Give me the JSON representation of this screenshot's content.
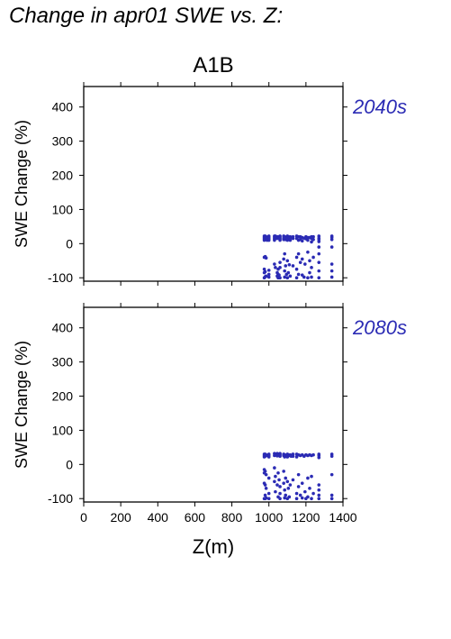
{
  "page": {
    "title": "Change in apr01 SWE vs. Z:",
    "scenario": "A1B"
  },
  "colors": {
    "points": "#2b2bb4",
    "period_label": "#2b2bb4",
    "frame": "#000000"
  },
  "chart_data": [
    {
      "type": "scatter",
      "period_label": "2040s",
      "xlabel": "",
      "ylabel": "SWE Change (%)",
      "xlim": [
        0,
        1400
      ],
      "ylim": [
        -110,
        460
      ],
      "xticks": [],
      "yticks": [
        -100,
        0,
        100,
        200,
        300,
        400
      ],
      "grid": false,
      "x": [
        975,
        975,
        975,
        975,
        975,
        975,
        975,
        975,
        980,
        980,
        980,
        980,
        980,
        980,
        985,
        985,
        985,
        985,
        990,
        990,
        1000,
        1000,
        1000,
        1000,
        1000,
        1000,
        1000,
        1030,
        1030,
        1030,
        1030,
        1030,
        1035,
        1035,
        1035,
        1045,
        1045,
        1045,
        1045,
        1050,
        1050,
        1050,
        1050,
        1055,
        1055,
        1060,
        1060,
        1060,
        1060,
        1060,
        1060,
        1060,
        1080,
        1080,
        1080,
        1080,
        1085,
        1085,
        1085,
        1085,
        1085,
        1090,
        1090,
        1090,
        1095,
        1095,
        1100,
        1100,
        1100,
        1100,
        1100,
        1100,
        1105,
        1105,
        1105,
        1110,
        1110,
        1115,
        1115,
        1115,
        1120,
        1130,
        1130,
        1130,
        1150,
        1150,
        1150,
        1150,
        1150,
        1160,
        1160,
        1160,
        1160,
        1170,
        1170,
        1170,
        1180,
        1180,
        1180,
        1180,
        1190,
        1190,
        1195,
        1200,
        1200,
        1210,
        1210,
        1210,
        1210,
        1220,
        1220,
        1220,
        1230,
        1230,
        1230,
        1230,
        1230,
        1240,
        1240,
        1240,
        1270,
        1270,
        1270,
        1270,
        1270,
        1270,
        1270,
        1270,
        1270,
        1340,
        1340,
        1340,
        1340,
        1340,
        1340,
        1340
      ],
      "y": [
        22,
        18,
        14,
        10,
        -40,
        -75,
        -85,
        -100,
        22,
        16,
        12,
        -38,
        -82,
        -97,
        20,
        14,
        -42,
        -95,
        18,
        10,
        22,
        18,
        14,
        10,
        -78,
        -90,
        -98,
        22,
        18,
        14,
        10,
        -60,
        22,
        15,
        -70,
        20,
        15,
        -85,
        -95,
        20,
        -75,
        -90,
        -100,
        18,
        -92,
        22,
        18,
        14,
        10,
        -55,
        -70,
        -100,
        22,
        16,
        12,
        -45,
        20,
        14,
        -30,
        -80,
        -98,
        18,
        12,
        -65,
        16,
        -90,
        22,
        18,
        14,
        10,
        -50,
        -100,
        20,
        15,
        -85,
        18,
        -62,
        20,
        10,
        -95,
        18,
        20,
        15,
        -65,
        22,
        15,
        -40,
        -75,
        -100,
        20,
        10,
        -30,
        -90,
        20,
        12,
        -55,
        18,
        8,
        -45,
        -92,
        16,
        -98,
        -60,
        20,
        14,
        18,
        10,
        -25,
        -100,
        18,
        -50,
        -85,
        20,
        15,
        5,
        -70,
        -98,
        20,
        12,
        -40,
        22,
        16,
        12,
        6,
        -10,
        -30,
        -55,
        -80,
        -100,
        22,
        18,
        12,
        -10,
        -60,
        -80,
        -98
      ]
    },
    {
      "type": "scatter",
      "period_label": "2080s",
      "xlabel": "Z(m)",
      "ylabel": "SWE Change (%)",
      "xlim": [
        0,
        1400
      ],
      "ylim": [
        -110,
        460
      ],
      "xticks": [
        0,
        200,
        400,
        600,
        800,
        1000,
        1200,
        1400
      ],
      "yticks": [
        -100,
        0,
        100,
        200,
        300,
        400
      ],
      "grid": false,
      "x": [
        975,
        975,
        975,
        975,
        975,
        975,
        975,
        980,
        980,
        980,
        980,
        980,
        980,
        985,
        985,
        985,
        985,
        990,
        1000,
        1000,
        1000,
        1000,
        1000,
        1000,
        1030,
        1030,
        1030,
        1030,
        1035,
        1035,
        1035,
        1045,
        1045,
        1045,
        1050,
        1050,
        1050,
        1055,
        1055,
        1060,
        1060,
        1060,
        1060,
        1060,
        1060,
        1080,
        1080,
        1080,
        1080,
        1085,
        1085,
        1085,
        1085,
        1090,
        1090,
        1090,
        1095,
        1100,
        1100,
        1100,
        1100,
        1100,
        1105,
        1105,
        1110,
        1110,
        1115,
        1115,
        1120,
        1130,
        1130,
        1130,
        1150,
        1150,
        1150,
        1150,
        1160,
        1160,
        1160,
        1170,
        1170,
        1180,
        1180,
        1180,
        1190,
        1195,
        1200,
        1200,
        1210,
        1210,
        1210,
        1220,
        1220,
        1230,
        1230,
        1230,
        1240,
        1240,
        1270,
        1270,
        1270,
        1270,
        1270,
        1270,
        1270,
        1340,
        1340,
        1340,
        1340,
        1340
      ],
      "y": [
        30,
        26,
        22,
        -15,
        -25,
        -55,
        -100,
        30,
        24,
        -20,
        -60,
        -90,
        -100,
        28,
        -30,
        -70,
        -98,
        26,
        30,
        26,
        22,
        -40,
        -85,
        -100,
        32,
        26,
        -10,
        -50,
        30,
        -35,
        -80,
        32,
        25,
        -60,
        30,
        -25,
        -95,
        28,
        -45,
        32,
        28,
        24,
        -65,
        -85,
        -100,
        30,
        26,
        -20,
        -55,
        28,
        22,
        -75,
        -98,
        26,
        -40,
        -90,
        24,
        30,
        26,
        22,
        -50,
        -100,
        28,
        -70,
        26,
        -95,
        28,
        -60,
        24,
        30,
        24,
        -45,
        30,
        22,
        -85,
        -100,
        28,
        -30,
        -65,
        26,
        -90,
        28,
        -55,
        -98,
        24,
        -80,
        28,
        -100,
        26,
        -40,
        -95,
        28,
        -70,
        26,
        -35,
        -100,
        28,
        -85,
        30,
        26,
        20,
        -60,
        -75,
        -90,
        -100,
        30,
        24,
        -30,
        -90,
        -100
      ]
    }
  ]
}
